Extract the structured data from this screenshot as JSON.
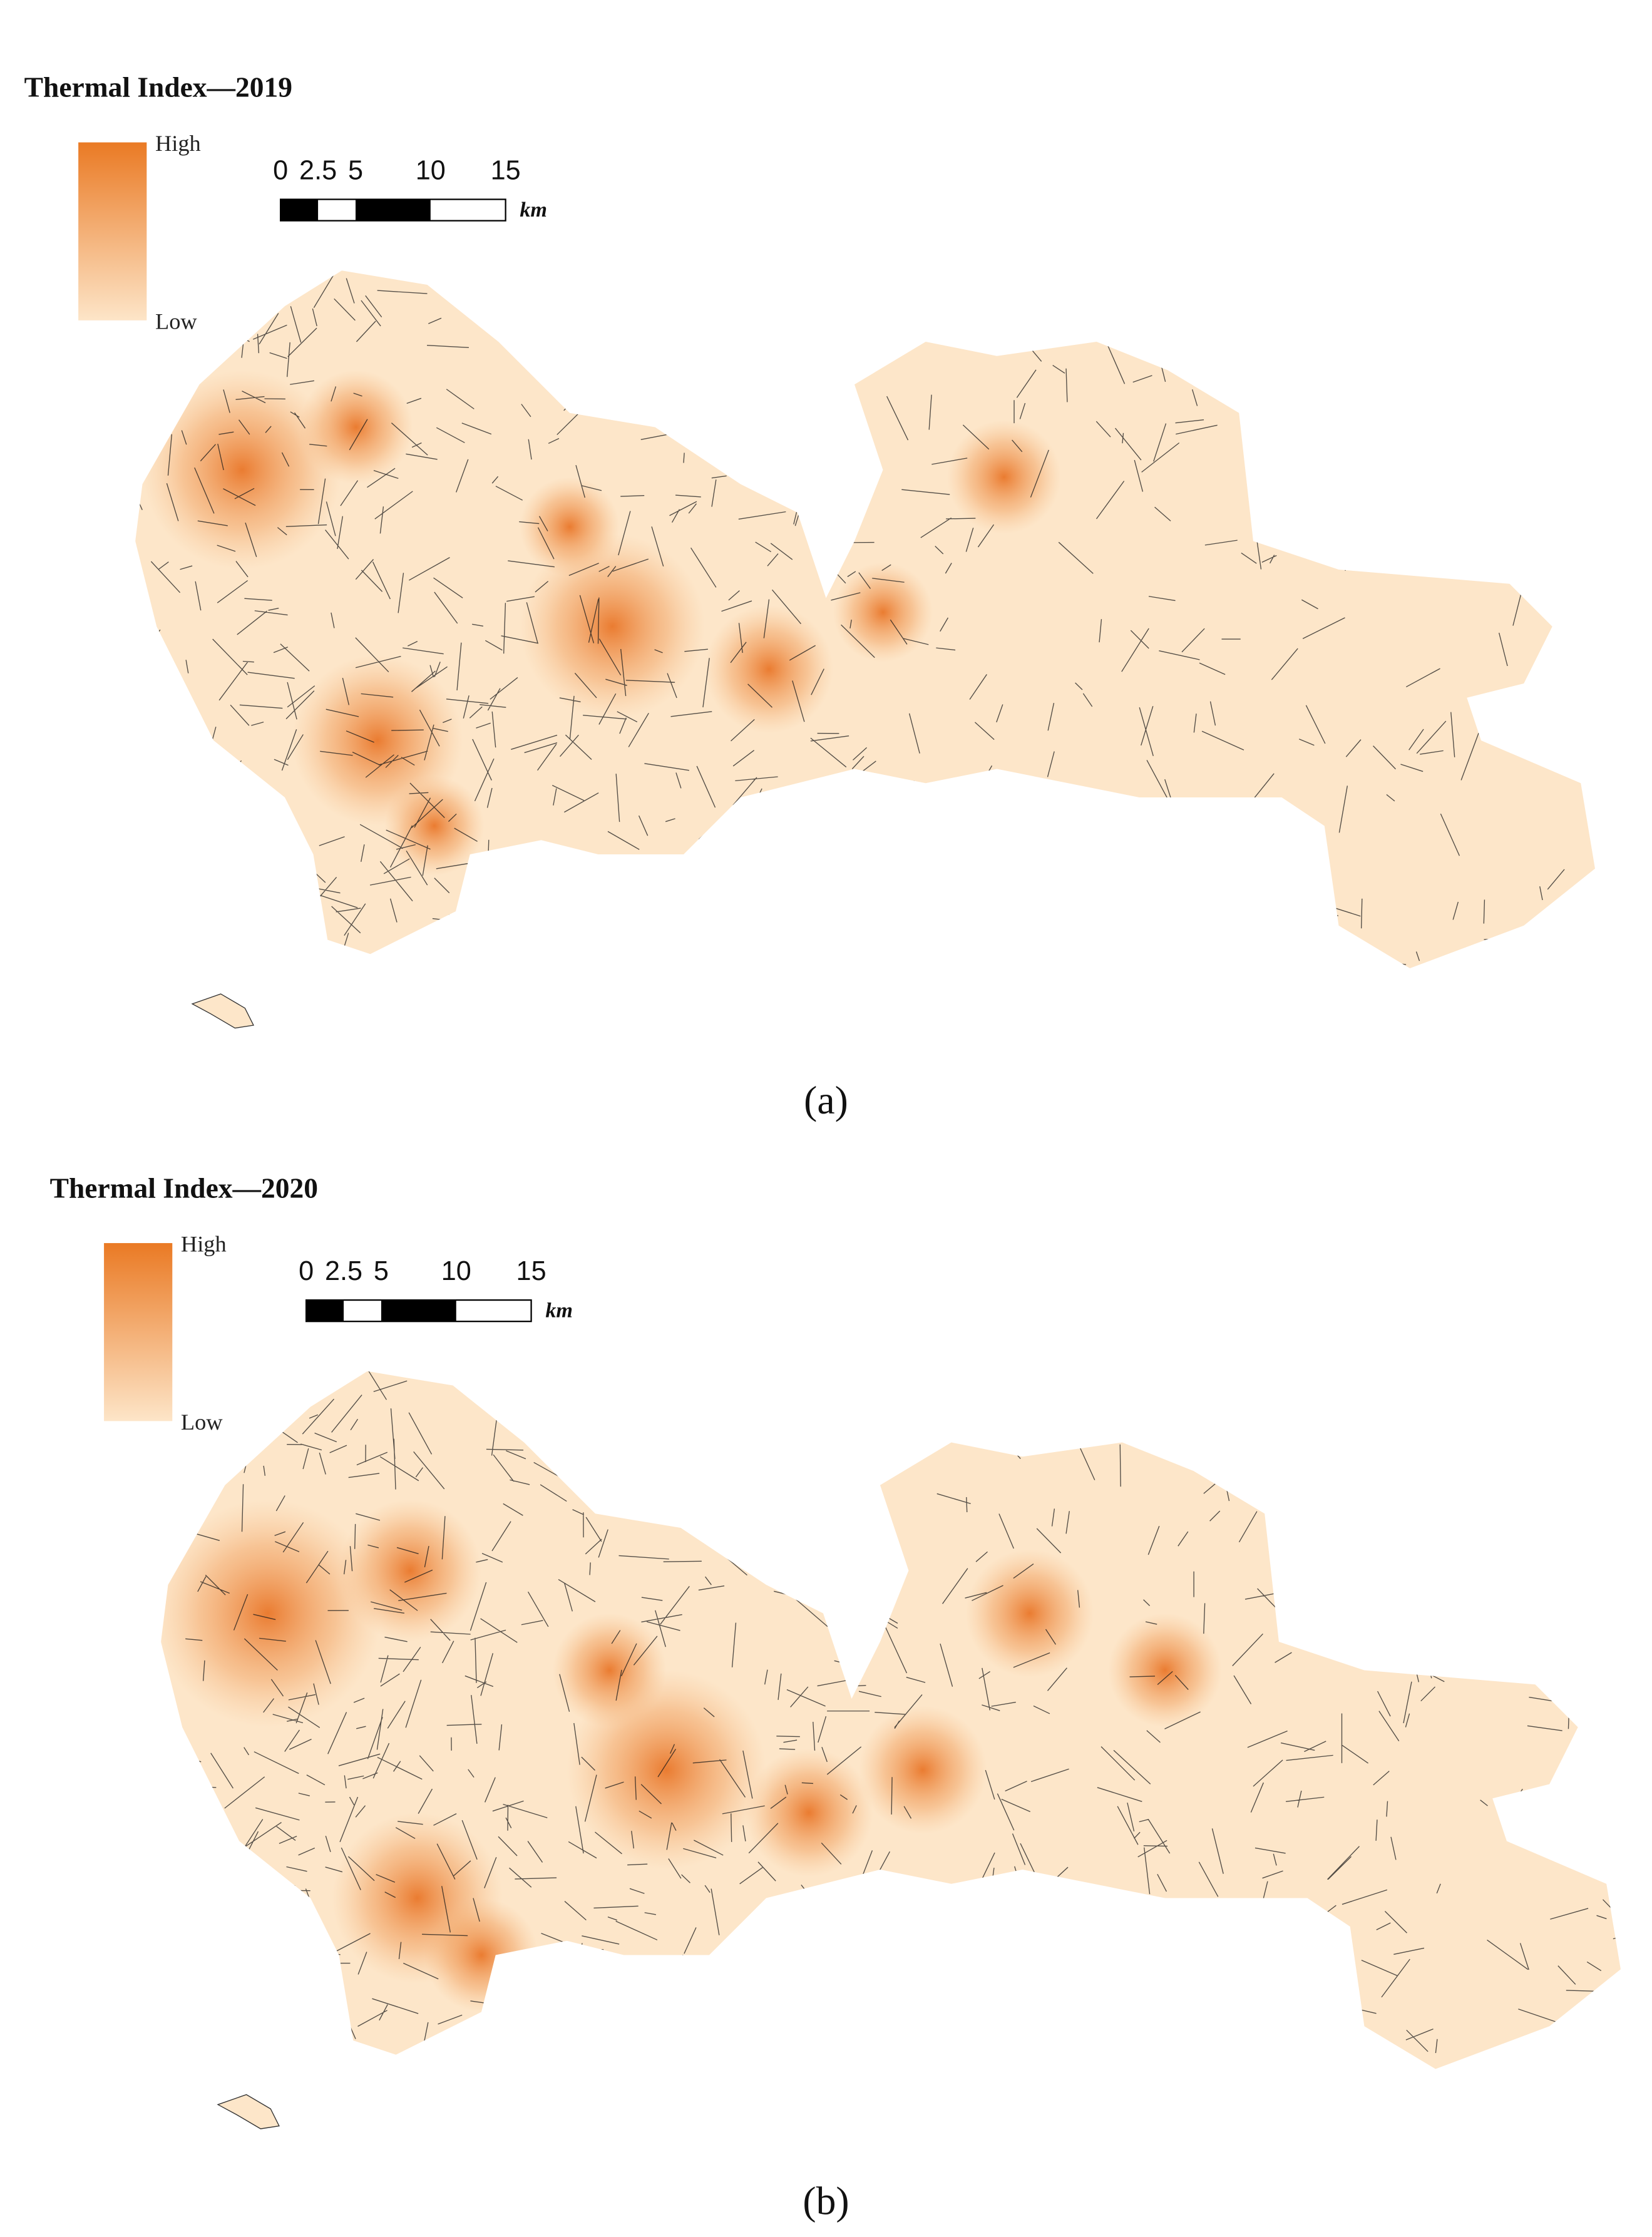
{
  "panels": [
    {
      "title": "Thermal Index—2019",
      "legend": {
        "high": "High",
        "low": "Low"
      },
      "scale_bar": {
        "ticks": [
          0,
          2.5,
          5,
          10,
          15
        ],
        "unit": "km"
      },
      "caption": "(a)"
    },
    {
      "title": "Thermal Index—2020",
      "legend": {
        "high": "High",
        "low": "Low"
      },
      "scale_bar": {
        "ticks": [
          0,
          2.5,
          5,
          10,
          15
        ],
        "unit": "km"
      },
      "caption": "(b)"
    }
  ]
}
